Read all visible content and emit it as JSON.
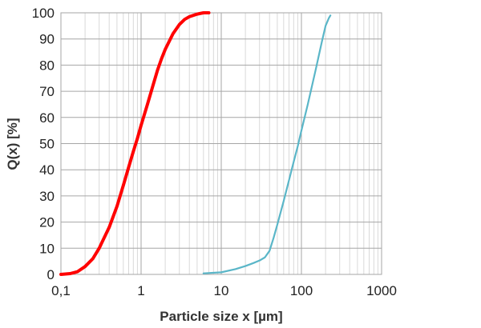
{
  "chart_data": {
    "type": "line",
    "title": "",
    "xlabel": "Particle size x [µm]",
    "ylabel": "Q(x)  [%]",
    "x_scale": "log",
    "xlim": [
      0.1,
      1000
    ],
    "ylim": [
      0,
      100
    ],
    "grid": true,
    "legend": "none",
    "x_ticks": [
      {
        "value": 0.1,
        "label": "0,1"
      },
      {
        "value": 1,
        "label": "1"
      },
      {
        "value": 10,
        "label": "10"
      },
      {
        "value": 100,
        "label": "100"
      },
      {
        "value": 1000,
        "label": "1000"
      }
    ],
    "y_ticks": [
      {
        "value": 0,
        "label": "0"
      },
      {
        "value": 10,
        "label": "10"
      },
      {
        "value": 20,
        "label": "20"
      },
      {
        "value": 30,
        "label": "30"
      },
      {
        "value": 40,
        "label": "40"
      },
      {
        "value": 50,
        "label": "50"
      },
      {
        "value": 60,
        "label": "60"
      },
      {
        "value": 70,
        "label": "70"
      },
      {
        "value": 80,
        "label": "80"
      },
      {
        "value": 90,
        "label": "90"
      },
      {
        "value": 100,
        "label": "100"
      }
    ],
    "series": [
      {
        "color": "#ff0000",
        "points": [
          [
            0.1,
            0
          ],
          [
            0.13,
            0.3
          ],
          [
            0.16,
            1
          ],
          [
            0.2,
            3
          ],
          [
            0.25,
            6
          ],
          [
            0.3,
            10
          ],
          [
            0.4,
            18
          ],
          [
            0.5,
            26
          ],
          [
            0.6,
            34
          ],
          [
            0.7,
            41
          ],
          [
            0.8,
            47
          ],
          [
            0.9,
            52
          ],
          [
            1.0,
            57
          ],
          [
            1.2,
            65
          ],
          [
            1.4,
            72
          ],
          [
            1.6,
            78
          ],
          [
            1.8,
            82.5
          ],
          [
            2.0,
            86
          ],
          [
            2.5,
            92
          ],
          [
            3.0,
            95.5
          ],
          [
            3.5,
            97.5
          ],
          [
            4.0,
            98.5
          ],
          [
            5.0,
            99.5
          ],
          [
            6.0,
            100
          ],
          [
            7.0,
            100
          ]
        ]
      },
      {
        "color": "#5ab6c8",
        "points": [
          [
            6.0,
            0.4
          ],
          [
            10,
            0.8
          ],
          [
            15,
            2
          ],
          [
            20,
            3.2
          ],
          [
            25,
            4.3
          ],
          [
            30,
            5.3
          ],
          [
            35,
            6.5
          ],
          [
            40,
            9
          ],
          [
            45,
            14
          ],
          [
            50,
            19
          ],
          [
            60,
            28
          ],
          [
            70,
            36
          ],
          [
            80,
            43
          ],
          [
            90,
            49
          ],
          [
            100,
            55
          ],
          [
            120,
            65
          ],
          [
            150,
            78
          ],
          [
            180,
            89
          ],
          [
            200,
            95
          ],
          [
            220,
            98
          ],
          [
            230,
            99
          ]
        ]
      }
    ]
  }
}
